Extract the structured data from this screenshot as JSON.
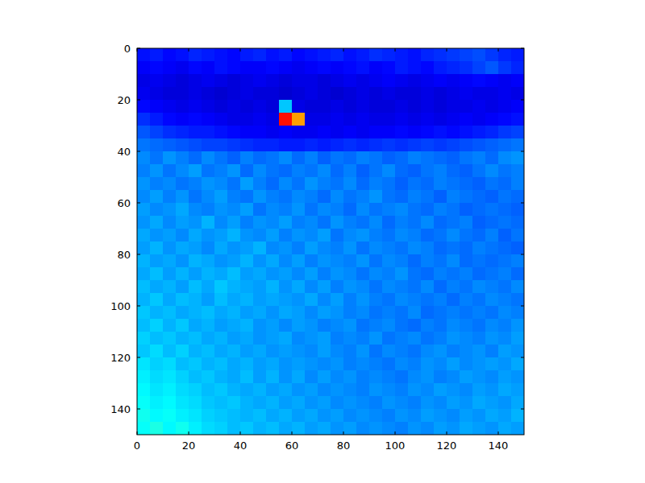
{
  "chart_data": {
    "type": "heatmap",
    "xlim": [
      0,
      150
    ],
    "ylim": [
      150,
      0
    ],
    "xticks": [
      0,
      20,
      40,
      60,
      80,
      100,
      120,
      140
    ],
    "yticks": [
      0,
      20,
      40,
      60,
      80,
      100,
      120,
      140
    ],
    "clim": [
      0,
      100
    ],
    "cells": [
      [
        14,
        15,
        13,
        14,
        16,
        15,
        14,
        13,
        15,
        16,
        14,
        15,
        13,
        14,
        15,
        16,
        14,
        15,
        17,
        16,
        15,
        14,
        16,
        17,
        18,
        19,
        20,
        18,
        16,
        15
      ],
      [
        12,
        13,
        12,
        11,
        13,
        12,
        14,
        13,
        12,
        12,
        13,
        12,
        11,
        12,
        13,
        12,
        13,
        14,
        12,
        13,
        15,
        14,
        13,
        15,
        16,
        17,
        19,
        21,
        18,
        16
      ],
      [
        10,
        11,
        10,
        9,
        10,
        11,
        10,
        9,
        10,
        11,
        10,
        9,
        10,
        10,
        9,
        10,
        11,
        10,
        11,
        12,
        11,
        10,
        11,
        12,
        11,
        12,
        13,
        12,
        11,
        12
      ],
      [
        11,
        10,
        9,
        9,
        10,
        9,
        8,
        9,
        10,
        9,
        9,
        8,
        9,
        10,
        9,
        8,
        9,
        10,
        9,
        10,
        9,
        9,
        10,
        9,
        10,
        11,
        10,
        10,
        11,
        10
      ],
      [
        13,
        12,
        11,
        10,
        11,
        10,
        9,
        10,
        9,
        10,
        9,
        32,
        10,
        9,
        9,
        10,
        9,
        10,
        9,
        9,
        10,
        9,
        10,
        9,
        10,
        10,
        11,
        10,
        11,
        12
      ],
      [
        17,
        15,
        13,
        12,
        13,
        12,
        11,
        10,
        10,
        11,
        10,
        86,
        72,
        10,
        10,
        11,
        10,
        11,
        10,
        10,
        11,
        10,
        11,
        10,
        11,
        12,
        11,
        12,
        13,
        14
      ],
      [
        21,
        19,
        17,
        16,
        15,
        15,
        14,
        13,
        12,
        12,
        11,
        12,
        11,
        11,
        12,
        11,
        12,
        11,
        12,
        12,
        13,
        12,
        13,
        14,
        13,
        14,
        15,
        16,
        18,
        19
      ],
      [
        24,
        23,
        22,
        21,
        20,
        19,
        19,
        18,
        17,
        16,
        16,
        15,
        15,
        16,
        15,
        16,
        17,
        16,
        17,
        18,
        17,
        18,
        19,
        18,
        19,
        20,
        21,
        22,
        23,
        24
      ],
      [
        26,
        24,
        27,
        25,
        23,
        26,
        24,
        22,
        25,
        23,
        24,
        26,
        23,
        25,
        22,
        24,
        23,
        25,
        24,
        22,
        23,
        25,
        24,
        23,
        22,
        24,
        25,
        23,
        26,
        27
      ],
      [
        25,
        27,
        24,
        26,
        28,
        24,
        25,
        27,
        23,
        26,
        24,
        23,
        25,
        24,
        26,
        23,
        25,
        22,
        24,
        26,
        23,
        22,
        24,
        25,
        23,
        22,
        24,
        26,
        24,
        25
      ],
      [
        27,
        25,
        26,
        24,
        25,
        27,
        26,
        24,
        28,
        25,
        23,
        26,
        24,
        27,
        25,
        24,
        26,
        23,
        25,
        24,
        22,
        24,
        23,
        25,
        24,
        23,
        22,
        24,
        23,
        25
      ],
      [
        26,
        28,
        25,
        27,
        24,
        26,
        28,
        25,
        24,
        27,
        25,
        24,
        26,
        25,
        23,
        26,
        24,
        25,
        27,
        24,
        23,
        25,
        24,
        22,
        25,
        24,
        23,
        22,
        24,
        23
      ],
      [
        28,
        26,
        27,
        29,
        26,
        25,
        27,
        26,
        28,
        24,
        26,
        25,
        27,
        24,
        26,
        25,
        23,
        26,
        24,
        25,
        26,
        24,
        23,
        25,
        24,
        22,
        23,
        24,
        23,
        22
      ],
      [
        27,
        29,
        26,
        28,
        27,
        30,
        26,
        28,
        25,
        27,
        26,
        28,
        25,
        26,
        24,
        27,
        25,
        24,
        26,
        23,
        25,
        24,
        26,
        23,
        24,
        25,
        22,
        23,
        24,
        23
      ],
      [
        29,
        27,
        28,
        26,
        29,
        27,
        28,
        30,
        27,
        26,
        28,
        25,
        27,
        26,
        28,
        24,
        26,
        27,
        25,
        24,
        26,
        25,
        23,
        24,
        26,
        24,
        23,
        25,
        22,
        24
      ],
      [
        28,
        30,
        27,
        29,
        28,
        26,
        29,
        27,
        28,
        30,
        26,
        27,
        25,
        28,
        26,
        25,
        27,
        24,
        26,
        25,
        24,
        26,
        25,
        23,
        24,
        23,
        25,
        24,
        23,
        22
      ],
      [
        30,
        28,
        29,
        27,
        30,
        29,
        27,
        28,
        30,
        27,
        29,
        26,
        28,
        25,
        27,
        26,
        25,
        27,
        24,
        26,
        25,
        23,
        25,
        24,
        26,
        23,
        24,
        23,
        24,
        25
      ],
      [
        29,
        31,
        28,
        30,
        28,
        30,
        29,
        31,
        28,
        29,
        27,
        28,
        26,
        28,
        25,
        27,
        26,
        24,
        26,
        25,
        27,
        24,
        23,
        25,
        24,
        25,
        23,
        24,
        25,
        23
      ],
      [
        31,
        29,
        30,
        28,
        31,
        29,
        32,
        30,
        29,
        28,
        30,
        27,
        29,
        26,
        28,
        25,
        27,
        26,
        24,
        26,
        25,
        24,
        26,
        23,
        25,
        24,
        26,
        25,
        24,
        26
      ],
      [
        30,
        32,
        29,
        31,
        30,
        28,
        31,
        29,
        30,
        28,
        29,
        28,
        27,
        29,
        26,
        28,
        25,
        27,
        25,
        24,
        26,
        25,
        24,
        25,
        23,
        25,
        24,
        26,
        25,
        24
      ],
      [
        32,
        30,
        31,
        29,
        30,
        31,
        29,
        30,
        28,
        29,
        27,
        29,
        28,
        26,
        28,
        27,
        25,
        26,
        24,
        25,
        24,
        26,
        23,
        24,
        25,
        24,
        25,
        24,
        26,
        25
      ],
      [
        31,
        33,
        30,
        32,
        29,
        30,
        28,
        29,
        30,
        27,
        28,
        26,
        28,
        27,
        25,
        26,
        27,
        24,
        25,
        26,
        24,
        23,
        25,
        24,
        26,
        25,
        24,
        26,
        25,
        27
      ],
      [
        33,
        31,
        32,
        30,
        31,
        29,
        30,
        28,
        29,
        27,
        28,
        29,
        26,
        27,
        28,
        25,
        26,
        25,
        27,
        24,
        25,
        26,
        24,
        25,
        27,
        26,
        25,
        27,
        26,
        28
      ],
      [
        32,
        34,
        31,
        33,
        30,
        31,
        29,
        30,
        28,
        29,
        27,
        28,
        27,
        26,
        28,
        26,
        25,
        27,
        24,
        26,
        25,
        24,
        26,
        27,
        25,
        26,
        27,
        25,
        28,
        27
      ],
      [
        35,
        33,
        34,
        31,
        32,
        30,
        31,
        29,
        30,
        28,
        29,
        27,
        28,
        27,
        26,
        27,
        25,
        26,
        25,
        24,
        26,
        25,
        27,
        26,
        28,
        26,
        27,
        28,
        27,
        29
      ],
      [
        36,
        34,
        35,
        33,
        31,
        32,
        30,
        29,
        31,
        28,
        30,
        27,
        29,
        26,
        28,
        26,
        27,
        25,
        26,
        25,
        24,
        26,
        27,
        25,
        26,
        28,
        27,
        26,
        28,
        27
      ],
      [
        37,
        35,
        36,
        34,
        33,
        31,
        32,
        30,
        29,
        30,
        28,
        29,
        27,
        28,
        26,
        27,
        26,
        25,
        27,
        26,
        25,
        27,
        26,
        28,
        27,
        26,
        28,
        27,
        29,
        28
      ],
      [
        38,
        36,
        37,
        35,
        34,
        32,
        31,
        32,
        30,
        29,
        30,
        28,
        29,
        27,
        28,
        26,
        27,
        26,
        25,
        27,
        26,
        25,
        27,
        26,
        28,
        27,
        29,
        28,
        27,
        29
      ],
      [
        39,
        37,
        38,
        36,
        35,
        33,
        32,
        31,
        30,
        31,
        29,
        30,
        28,
        29,
        27,
        28,
        26,
        27,
        26,
        25,
        27,
        26,
        28,
        27,
        26,
        28,
        27,
        29,
        28,
        30
      ],
      [
        38,
        40,
        37,
        39,
        36,
        34,
        33,
        31,
        32,
        30,
        31,
        29,
        30,
        28,
        29,
        27,
        28,
        26,
        27,
        26,
        25,
        27,
        26,
        28,
        27,
        29,
        28,
        27,
        29,
        28
      ]
    ]
  }
}
